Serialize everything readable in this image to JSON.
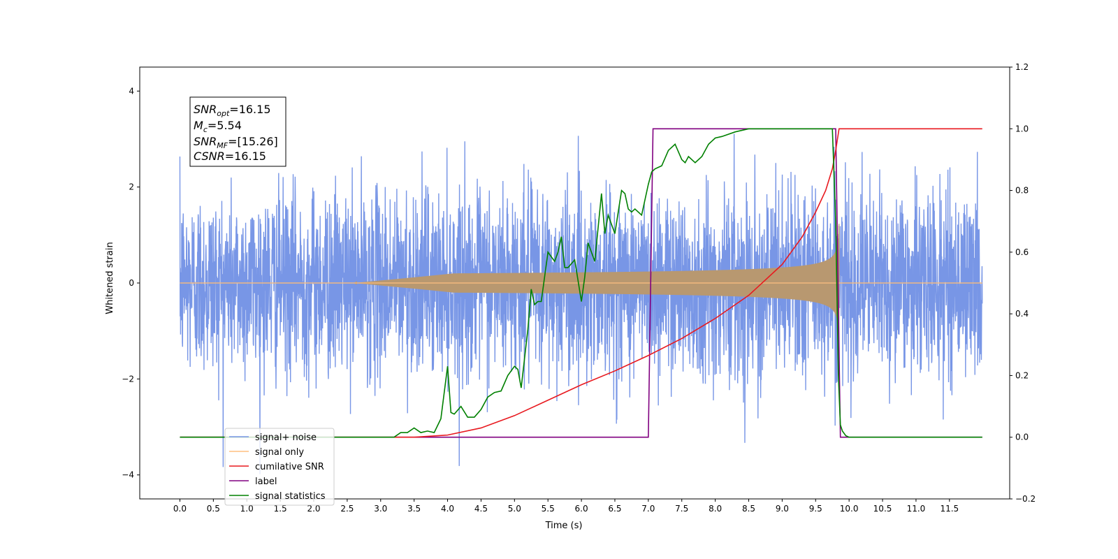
{
  "chart_data": {
    "type": "line",
    "xlabel": "Time (s)",
    "ylabel": "Whitened strain",
    "xlim": [
      -0.6,
      12.4
    ],
    "ylim_left": [
      -4.5,
      4.5
    ],
    "ylim_right": [
      -0.2,
      1.2
    ],
    "x_ticks": [
      0.0,
      0.5,
      1.0,
      1.5,
      2.0,
      2.5,
      3.0,
      3.5,
      4.0,
      4.5,
      5.0,
      5.5,
      6.0,
      6.5,
      7.0,
      7.5,
      8.0,
      8.5,
      9.0,
      9.5,
      10.0,
      10.5,
      11.0,
      11.5
    ],
    "x_tick_labels": [
      "0.0",
      "0.5",
      "1.0",
      "1.5",
      "2.0",
      "2.5",
      "3.0",
      "3.5",
      "4.0",
      "4.5",
      "5.0",
      "5.5",
      "6.0",
      "6.5",
      "7.0",
      "7.5",
      "8.0",
      "8.5",
      "9.0",
      "9.5",
      "10.0",
      "10.5",
      "11.0",
      "11.5"
    ],
    "y_ticks_left": [
      -4,
      -2,
      0,
      2,
      4
    ],
    "y_tick_labels_left": [
      "−4",
      "−2",
      "0",
      "2",
      "4"
    ],
    "y_ticks_right": [
      -0.2,
      0.0,
      0.2,
      0.4,
      0.6,
      0.8,
      1.0,
      1.2
    ],
    "y_tick_labels_right": [
      "−0.2",
      "0.0",
      "0.2",
      "0.4",
      "0.6",
      "0.8",
      "1.0",
      "1.2"
    ],
    "grid": false,
    "legend_position": "lower-left",
    "info_box": {
      "snr_opt": {
        "base": "SNR",
        "sub": "opt",
        "value": "=16.15"
      },
      "mc": {
        "base": "M",
        "sub": "c",
        "value": "=5.54"
      },
      "snr_mf": {
        "base": "SNR",
        "sub": "MF",
        "value": "=[15.26]"
      },
      "csnr": {
        "base": "CSNR",
        "sub": "",
        "value": "=16.15"
      }
    },
    "series": [
      {
        "name": "signal+ noise",
        "axis": "left",
        "color": "#7896e6",
        "description_values": {
          "x_start": 0.0,
          "x_end": 11.99,
          "noise_std": 0.95,
          "max_abs": 4.05
        }
      },
      {
        "name": "signal only",
        "axis": "left",
        "color": "#ffbf80",
        "description_values": {
          "x_start": 0.0,
          "x_end": 11.99,
          "chirp_start": 3.8,
          "merger": 9.85,
          "peak_amplitude": 1.3
        }
      },
      {
        "name": "cumilative SNR",
        "axis": "right",
        "color": "#e8191f",
        "x": [
          0.0,
          3.0,
          3.5,
          4.0,
          4.5,
          5.0,
          5.5,
          6.0,
          6.5,
          7.0,
          7.5,
          8.0,
          8.5,
          9.0,
          9.3,
          9.5,
          9.65,
          9.75,
          9.8,
          9.85,
          9.86,
          11.99
        ],
        "y": [
          0.0,
          0.0,
          0.0,
          0.007,
          0.03,
          0.07,
          0.12,
          0.17,
          0.215,
          0.265,
          0.32,
          0.385,
          0.46,
          0.56,
          0.65,
          0.73,
          0.8,
          0.87,
          0.93,
          1.0,
          1.0,
          1.0
        ]
      },
      {
        "name": "label",
        "axis": "right",
        "color": "#800080",
        "x": [
          0.0,
          7.0,
          7.07,
          9.8,
          9.87,
          11.99
        ],
        "y": [
          0.0,
          0.0,
          1.0,
          1.0,
          0.0,
          0.0
        ]
      },
      {
        "name": "signal statistics",
        "axis": "right",
        "color": "#008000",
        "x": [
          0.0,
          3.0,
          3.2,
          3.3,
          3.4,
          3.5,
          3.6,
          3.7,
          3.8,
          3.9,
          4.0,
          4.05,
          4.1,
          4.2,
          4.3,
          4.4,
          4.5,
          4.6,
          4.7,
          4.8,
          4.9,
          5.0,
          5.05,
          5.1,
          5.2,
          5.25,
          5.3,
          5.35,
          5.4,
          5.5,
          5.6,
          5.65,
          5.7,
          5.75,
          5.8,
          5.9,
          6.0,
          6.05,
          6.1,
          6.2,
          6.3,
          6.35,
          6.4,
          6.5,
          6.6,
          6.65,
          6.7,
          6.75,
          6.8,
          6.9,
          7.0,
          7.05,
          7.1,
          7.2,
          7.3,
          7.4,
          7.5,
          7.55,
          7.6,
          7.7,
          7.8,
          7.9,
          8.0,
          8.1,
          8.3,
          8.5,
          8.9,
          9.5,
          9.75,
          9.8,
          9.84,
          9.87,
          9.9,
          9.95,
          10.0,
          10.5,
          11.99
        ],
        "y": [
          0.0,
          0.0,
          0.0,
          0.015,
          0.015,
          0.03,
          0.015,
          0.02,
          0.015,
          0.06,
          0.23,
          0.08,
          0.075,
          0.1,
          0.065,
          0.065,
          0.09,
          0.13,
          0.145,
          0.15,
          0.2,
          0.23,
          0.22,
          0.16,
          0.35,
          0.48,
          0.43,
          0.44,
          0.44,
          0.6,
          0.57,
          0.6,
          0.65,
          0.55,
          0.55,
          0.575,
          0.44,
          0.52,
          0.63,
          0.57,
          0.79,
          0.66,
          0.72,
          0.66,
          0.8,
          0.79,
          0.74,
          0.73,
          0.74,
          0.72,
          0.82,
          0.86,
          0.87,
          0.88,
          0.93,
          0.95,
          0.9,
          0.89,
          0.91,
          0.89,
          0.91,
          0.95,
          0.97,
          0.975,
          0.99,
          1.0,
          1.0,
          1.0,
          1.0,
          0.7,
          0.2,
          0.04,
          0.02,
          0.005,
          0.0,
          0.0,
          0.0
        ]
      }
    ]
  }
}
